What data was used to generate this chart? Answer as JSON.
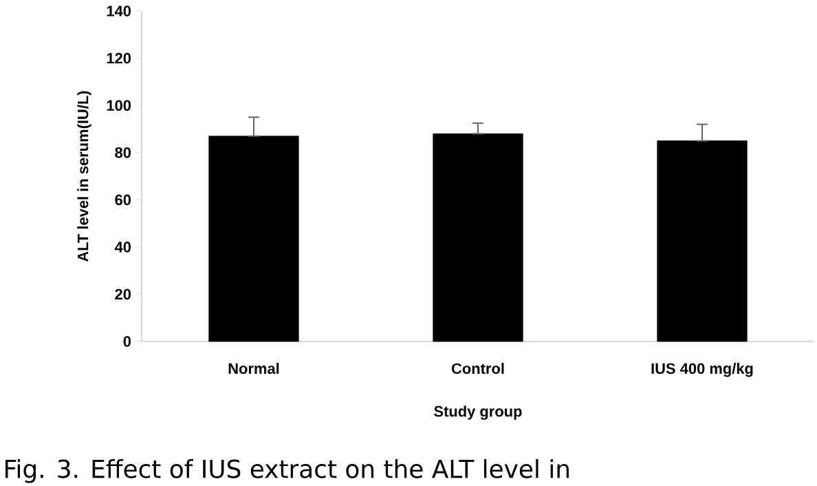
{
  "chart_data": {
    "type": "bar",
    "xlabel": "Study group",
    "ylabel": "ALT level in serum(IU/L)",
    "categories": [
      "Normal",
      "Control",
      "IUS 400 mg/kg"
    ],
    "values": [
      87,
      88,
      85
    ],
    "color": "#000000",
    "errors": [
      [
        87,
        95
      ],
      [
        88,
        92.5
      ],
      [
        85,
        92
      ]
    ],
    "ylim": [
      0,
      140
    ],
    "yticks": [
      0,
      20,
      40,
      60,
      80,
      100,
      120,
      140
    ],
    "grid": false,
    "annotations": [
      "Fig. 3. Effect of IUS extract on the ALT level in"
    ]
  }
}
